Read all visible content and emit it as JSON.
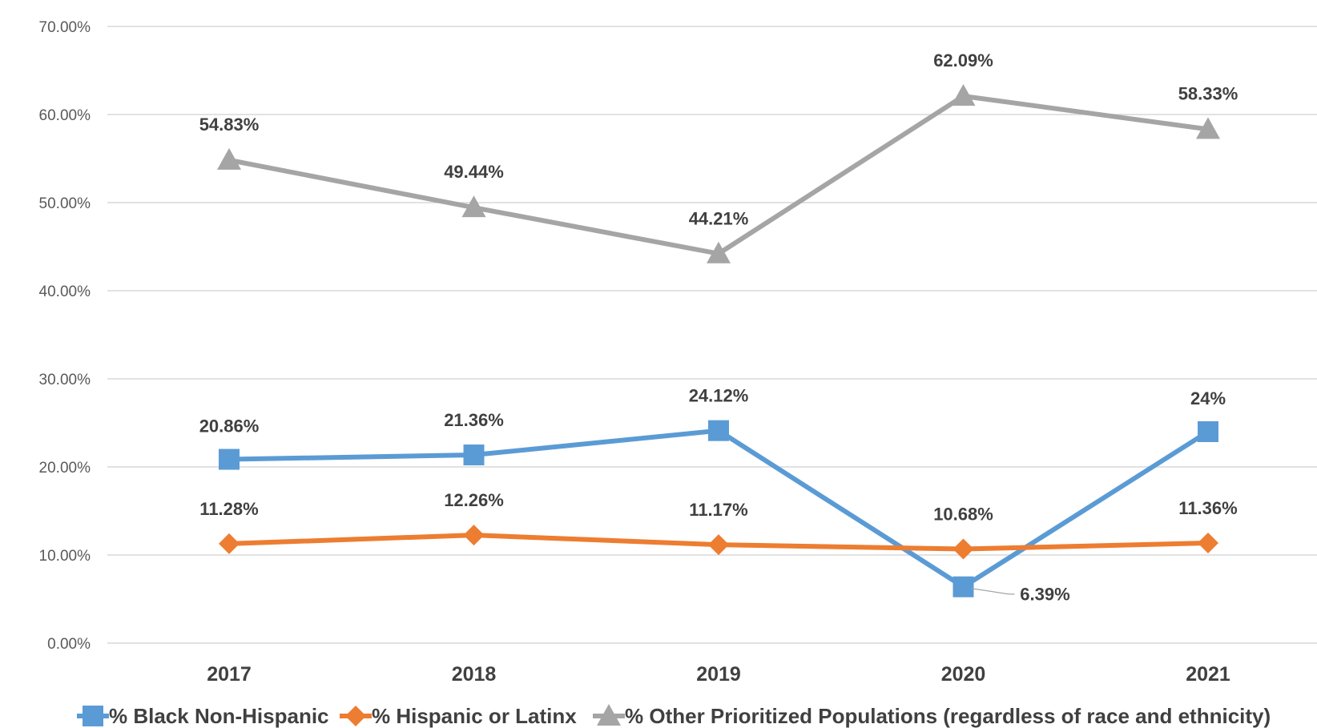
{
  "chart_data": {
    "type": "line",
    "categories": [
      "2017",
      "2018",
      "2019",
      "2020",
      "2021"
    ],
    "ylim": [
      0,
      70
    ],
    "yticks": [
      "0.00%",
      "10.00%",
      "20.00%",
      "30.00%",
      "40.00%",
      "50.00%",
      "60.00%",
      "70.00%"
    ],
    "grid": true,
    "legend_position": "bottom",
    "series": [
      {
        "name": "% Black Non-Hispanic",
        "color": "#5B9BD5",
        "marker": "square",
        "values": [
          20.86,
          21.36,
          24.12,
          6.39,
          24
        ],
        "labels": [
          "20.86%",
          "21.36%",
          "24.12%",
          "6.39%",
          "24%"
        ]
      },
      {
        "name": "% Hispanic or Latinx",
        "color": "#ED7D31",
        "marker": "diamond",
        "values": [
          11.28,
          12.26,
          11.17,
          10.68,
          11.36
        ],
        "labels": [
          "11.28%",
          "12.26%",
          "11.17%",
          "10.68%",
          "11.36%"
        ]
      },
      {
        "name": "% Other Prioritized Populations (regardless of race and ethnicity)",
        "color": "#A5A5A5",
        "marker": "triangle",
        "values": [
          54.83,
          49.44,
          44.21,
          62.09,
          58.33
        ],
        "labels": [
          "54.83%",
          "49.44%",
          "44.21%",
          "62.09%",
          "58.33%"
        ]
      }
    ]
  }
}
